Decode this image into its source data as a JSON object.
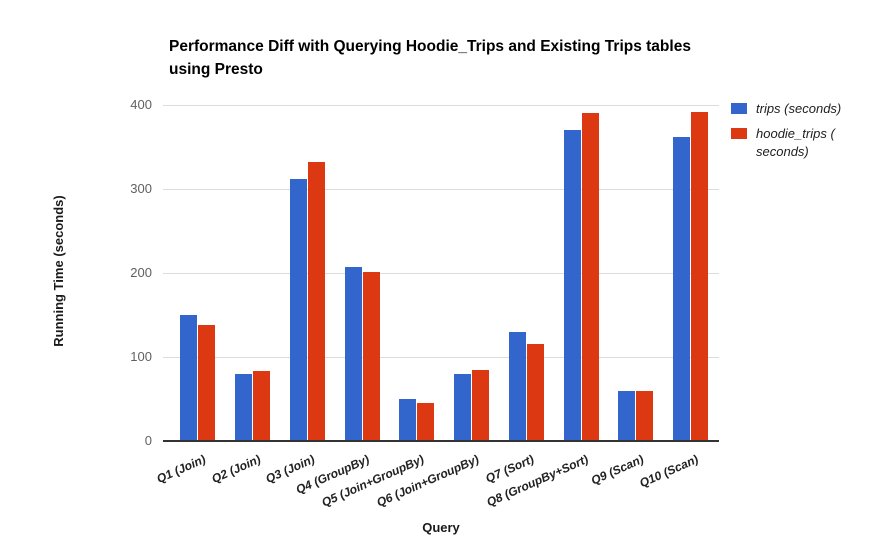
{
  "header": {
    "title_line1": "Performance Diff with Querying Hoodie_Trips and Existing Trips tables",
    "title_line2": "using Presto"
  },
  "legend": {
    "items": [
      {
        "label": "trips (seconds)",
        "color": "#3366cc"
      },
      {
        "label": "hoodie_trips ( seconds)",
        "color": "#dc3912"
      }
    ]
  },
  "chart_data": {
    "type": "bar",
    "title": "Performance Diff with Querying Hoodie_Trips and Existing Trips tables using Presto",
    "xlabel": "Query",
    "ylabel": "Running Time (seconds)",
    "categories": [
      "Q1 (Join)",
      "Q2 (Join)",
      "Q3 (Join)",
      "Q4 (GroupBy)",
      "Q5 (Join+GroupBy)",
      "Q6 (Join+GroupBy)",
      "Q7 (Sort)",
      "Q8 (GroupBy+Sort)",
      "Q9 (Scan)",
      "Q10 (Scan)"
    ],
    "series": [
      {
        "name": "trips (seconds)",
        "color": "#3366cc",
        "values": [
          150,
          80,
          312,
          207,
          50,
          80,
          130,
          370,
          60,
          362
        ]
      },
      {
        "name": "hoodie_trips (seconds)",
        "color": "#dc3912",
        "values": [
          138,
          83,
          332,
          201,
          45,
          84,
          116,
          390,
          59,
          392
        ]
      }
    ],
    "ylim": [
      0,
      400
    ],
    "yticks": [
      0,
      100,
      200,
      300,
      400
    ],
    "grid": true,
    "legend_position": "right"
  }
}
